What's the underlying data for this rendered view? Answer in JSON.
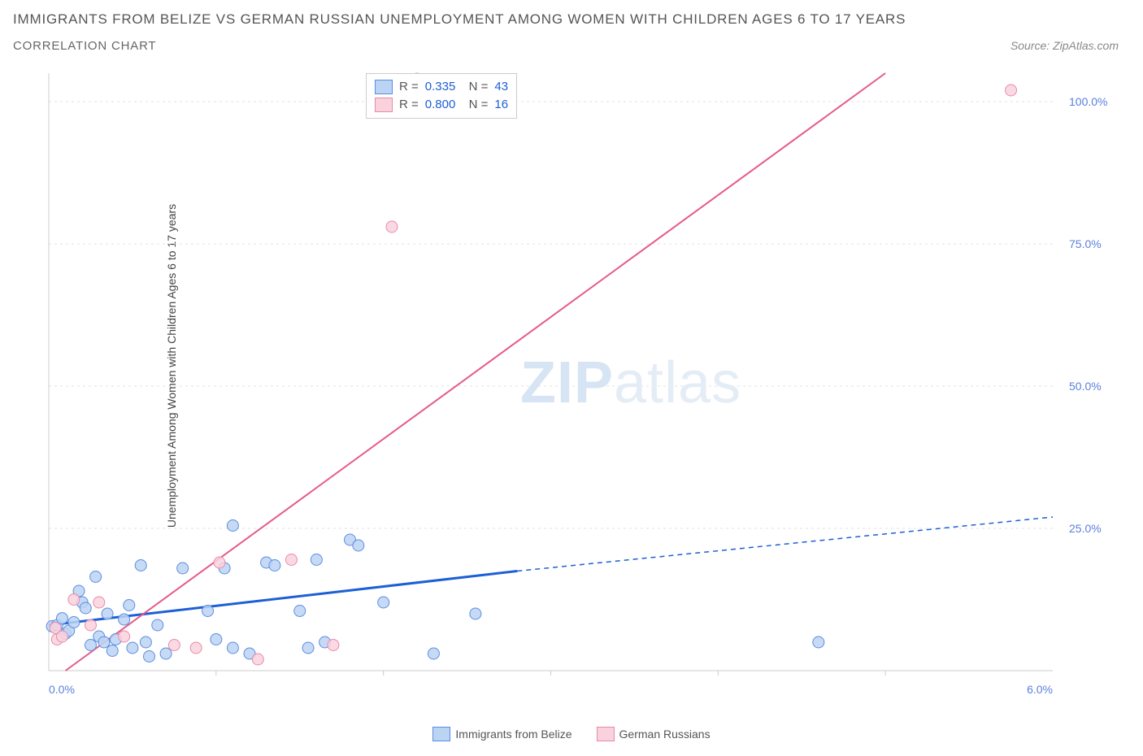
{
  "title": "IMMIGRANTS FROM BELIZE VS GERMAN RUSSIAN UNEMPLOYMENT AMONG WOMEN WITH CHILDREN AGES 6 TO 17 YEARS",
  "subtitle": "CORRELATION CHART",
  "source_text": "Source: ZipAtlas.com",
  "y_axis_label": "Unemployment Among Women with Children Ages 6 to 17 years",
  "watermark_left": "ZIP",
  "watermark_right": "atlas",
  "chart": {
    "type": "scatter",
    "background_color": "#ffffff",
    "grid_color": "#e2e2e2",
    "axis_line_color": "#cccccc",
    "tick_label_color": "#5a7fdc",
    "tick_fontsize": 14,
    "xlim": [
      0.0,
      6.0
    ],
    "ylim": [
      0.0,
      105.0
    ],
    "x_ticks": [
      0.0,
      6.0
    ],
    "x_tick_labels": [
      "0.0%",
      "6.0%"
    ],
    "x_minor_ticks": [
      1.0,
      2.0,
      3.0,
      4.0,
      5.0
    ],
    "y_ticks": [
      25.0,
      50.0,
      75.0,
      100.0
    ],
    "y_tick_labels": [
      "25.0%",
      "50.0%",
      "75.0%",
      "100.0%"
    ],
    "marker_radius": 7,
    "marker_stroke_width": 1,
    "series": [
      {
        "name": "Immigrants from Belize",
        "fill": "#bcd4f4",
        "stroke": "#5a8de0",
        "line_color": "#1d5fd6",
        "line_width": 3,
        "dash_line_width": 1.5,
        "R": "0.335",
        "N": "43",
        "regression": {
          "x1": 0.0,
          "y1": 8.0,
          "x2_solid": 2.8,
          "y2_solid": 17.5,
          "x2": 6.0,
          "y2": 27.0
        },
        "points": [
          [
            0.02,
            7.8
          ],
          [
            0.05,
            8.0
          ],
          [
            0.08,
            9.2
          ],
          [
            0.1,
            6.5
          ],
          [
            0.12,
            7.0
          ],
          [
            0.15,
            8.5
          ],
          [
            0.18,
            14.0
          ],
          [
            0.2,
            12.0
          ],
          [
            0.22,
            11.0
          ],
          [
            0.25,
            4.5
          ],
          [
            0.28,
            16.5
          ],
          [
            0.3,
            6.0
          ],
          [
            0.33,
            5.0
          ],
          [
            0.35,
            10.0
          ],
          [
            0.38,
            3.5
          ],
          [
            0.4,
            5.5
          ],
          [
            0.45,
            9.0
          ],
          [
            0.48,
            11.5
          ],
          [
            0.5,
            4.0
          ],
          [
            0.55,
            18.5
          ],
          [
            0.58,
            5.0
          ],
          [
            0.6,
            2.5
          ],
          [
            0.65,
            8.0
          ],
          [
            0.7,
            3.0
          ],
          [
            0.8,
            18.0
          ],
          [
            0.95,
            10.5
          ],
          [
            1.0,
            5.5
          ],
          [
            1.05,
            18.0
          ],
          [
            1.1,
            4.0
          ],
          [
            1.1,
            25.5
          ],
          [
            1.2,
            3.0
          ],
          [
            1.3,
            19.0
          ],
          [
            1.35,
            18.5
          ],
          [
            1.5,
            10.5
          ],
          [
            1.55,
            4.0
          ],
          [
            1.6,
            19.5
          ],
          [
            1.65,
            5.0
          ],
          [
            1.8,
            23.0
          ],
          [
            1.85,
            22.0
          ],
          [
            2.0,
            12.0
          ],
          [
            2.3,
            3.0
          ],
          [
            2.55,
            10.0
          ],
          [
            4.6,
            5.0
          ]
        ]
      },
      {
        "name": "German Russians",
        "fill": "#f9d2de",
        "stroke": "#e88aa8",
        "line_color": "#e65a88",
        "line_width": 2,
        "R": "0.800",
        "N": "16",
        "regression": {
          "x1": 0.1,
          "y1": 0.0,
          "x2_solid": 5.0,
          "y2_solid": 105.0,
          "x2": 5.0,
          "y2": 105.0
        },
        "points": [
          [
            0.04,
            7.5
          ],
          [
            0.05,
            5.5
          ],
          [
            0.08,
            6.0
          ],
          [
            0.15,
            12.5
          ],
          [
            0.25,
            8.0
          ],
          [
            0.3,
            12.0
          ],
          [
            0.45,
            6.0
          ],
          [
            0.75,
            4.5
          ],
          [
            0.88,
            4.0
          ],
          [
            1.02,
            19.0
          ],
          [
            1.25,
            2.0
          ],
          [
            1.45,
            19.5
          ],
          [
            1.7,
            4.5
          ],
          [
            2.05,
            78.0
          ],
          [
            2.2,
            104.0
          ],
          [
            5.75,
            102.0
          ]
        ]
      }
    ]
  },
  "bottom_legend": [
    {
      "label": "Immigrants from Belize",
      "fill": "#bcd4f4",
      "stroke": "#5a8de0"
    },
    {
      "label": "German Russians",
      "fill": "#f9d2de",
      "stroke": "#e88aa8"
    }
  ]
}
